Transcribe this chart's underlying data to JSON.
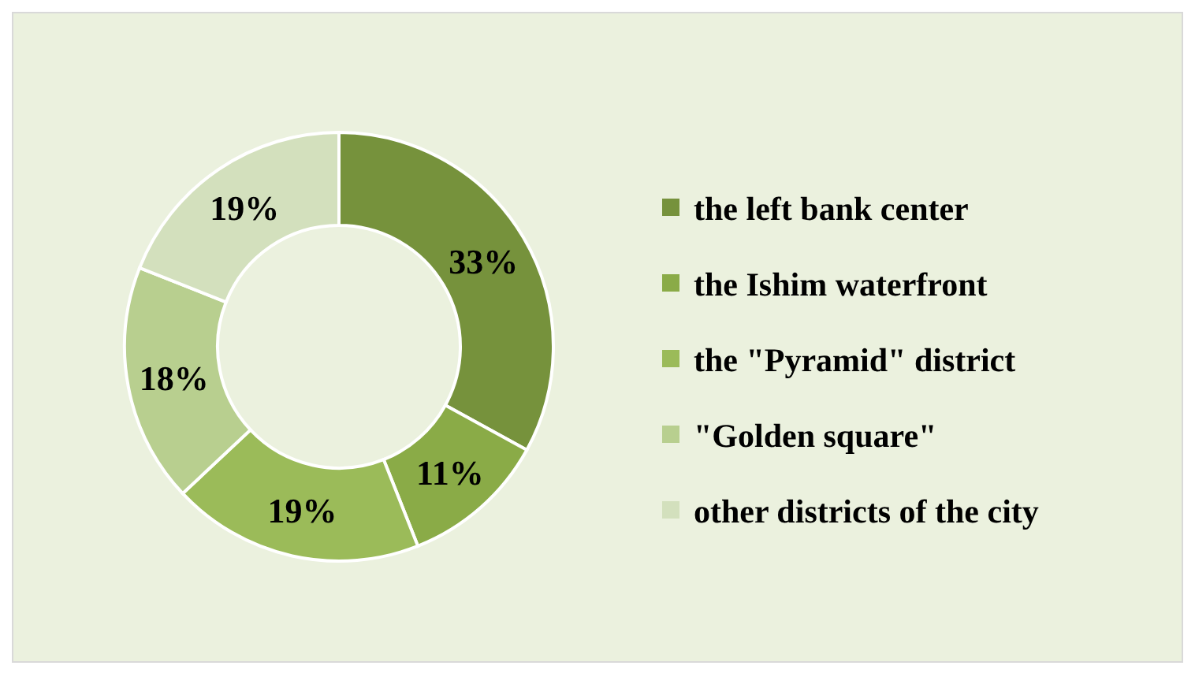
{
  "chart_data": {
    "type": "donut",
    "categories": [
      "the left bank center",
      "the Ishim waterfront",
      "the \"Pyramid\" district",
      "\"Golden square\"",
      "other districts of the city"
    ],
    "values": [
      33,
      11,
      19,
      18,
      19
    ],
    "value_labels": [
      "33%",
      "11%",
      "19%",
      "18%",
      "19%"
    ],
    "colors": [
      "#76923c",
      "#8aab47",
      "#9bbb59",
      "#b8cf8f",
      "#d3e0bd"
    ],
    "legend": "right"
  }
}
